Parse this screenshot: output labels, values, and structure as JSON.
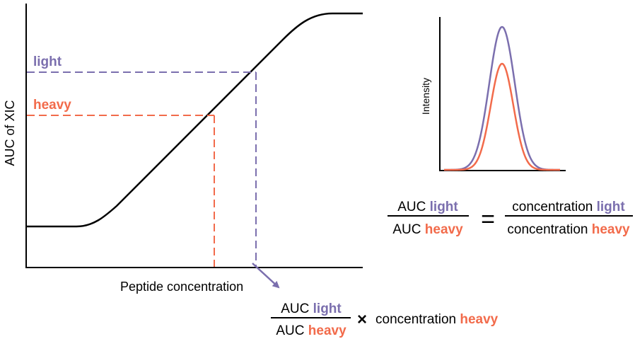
{
  "colors": {
    "light": "#7b6fae",
    "heavy": "#f26b4b",
    "ink": "#000000"
  },
  "main_plot": {
    "y_axis_label": "AUC of XIC",
    "x_axis_label": "Peptide concentration",
    "light_label": "light",
    "heavy_label": "heavy"
  },
  "inset_plot": {
    "y_axis_label": "Intensity"
  },
  "equation_ratio": {
    "left_top_prefix": "AUC ",
    "left_top_term": "light",
    "left_bottom_prefix": "AUC ",
    "left_bottom_term": "heavy",
    "equals": "=",
    "right_top_prefix": "concentration ",
    "right_top_term": "light",
    "right_bottom_prefix": "concentration ",
    "right_bottom_term": "heavy"
  },
  "equation_result": {
    "top_prefix": "AUC ",
    "top_term": "light",
    "bottom_prefix": "AUC ",
    "bottom_term": "heavy",
    "times": "×",
    "tail_prefix": "concentration ",
    "tail_term": "heavy"
  }
}
